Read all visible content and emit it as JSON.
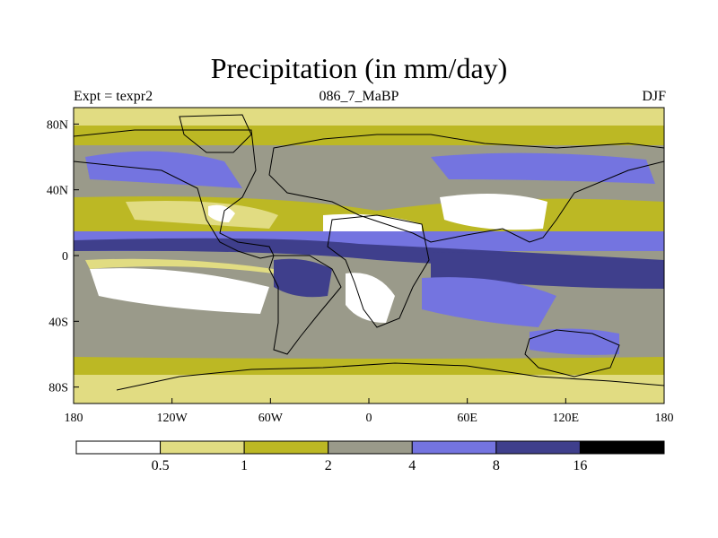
{
  "title": "Precipitation (in mm/day)",
  "subtitle_left": "Expt = texpr2",
  "subtitle_center": "086_7_MaBP",
  "subtitle_right": "DJF",
  "colors": {
    "c1": "#ffffff",
    "c2": "#e1dc82",
    "c3": "#bcb824",
    "c4": "#9a9a8a",
    "c5": "#7474e0",
    "c6": "#3f3f8c",
    "c7": "#000000",
    "land_outline": "#000000"
  },
  "map": {
    "lon_range": [
      -180,
      180
    ],
    "lat_range": [
      -90,
      90
    ],
    "x_ticks": [
      {
        "lon": -180,
        "label": "180"
      },
      {
        "lon": -120,
        "label": "120W"
      },
      {
        "lon": -60,
        "label": "60W"
      },
      {
        "lon": 0,
        "label": "0"
      },
      {
        "lon": 60,
        "label": "60E"
      },
      {
        "lon": 120,
        "label": "120E"
      },
      {
        "lon": 180,
        "label": "180"
      }
    ],
    "y_ticks": [
      {
        "lat": 80,
        "label": "80N"
      },
      {
        "lat": 40,
        "label": "40N"
      },
      {
        "lat": 0,
        "label": "0"
      },
      {
        "lat": -40,
        "label": "40S"
      },
      {
        "lat": -80,
        "label": "80S"
      }
    ]
  },
  "colorbar": {
    "labels": [
      "0.5",
      "1",
      "2",
      "4",
      "8",
      "16"
    ]
  }
}
